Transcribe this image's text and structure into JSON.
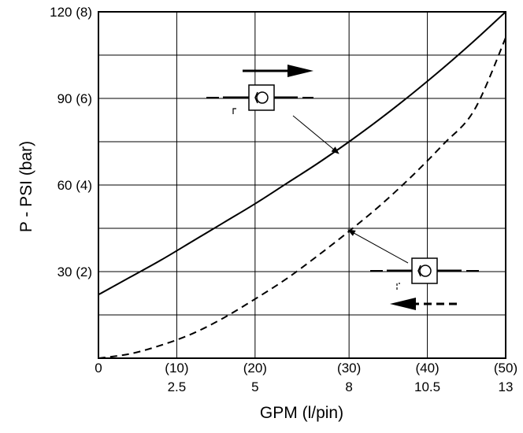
{
  "chart_data": {
    "type": "line",
    "title": "",
    "xlabel": "GPM (l/pin)",
    "ylabel": "P - PSI (bar)",
    "xlim": [
      0,
      13
    ],
    "ylim": [
      0,
      120
    ],
    "grid": true,
    "x_ticks": [
      {
        "value": 0,
        "top": "0",
        "bottom": ""
      },
      {
        "value": 2.5,
        "top": "(10)",
        "bottom": "2.5"
      },
      {
        "value": 5,
        "top": "(20)",
        "bottom": "5"
      },
      {
        "value": 8,
        "top": "(30)",
        "bottom": "8"
      },
      {
        "value": 10.5,
        "top": "(40)",
        "bottom": "10.5"
      },
      {
        "value": 13,
        "top": "(50)",
        "bottom": "13"
      }
    ],
    "y_ticks": [
      {
        "value": 30,
        "label": "30 (2)"
      },
      {
        "value": 60,
        "label": "60 (4)"
      },
      {
        "value": 90,
        "label": "90 (6)"
      },
      {
        "value": 120,
        "label": "120 (8)"
      }
    ],
    "y_grid": [
      15,
      30,
      45,
      60,
      75,
      90,
      105,
      120
    ],
    "series": [
      {
        "style": "solid",
        "color": "#000000",
        "x": [
          0,
          1,
          2,
          3,
          4,
          5,
          6,
          7,
          8,
          9,
          10,
          11,
          12,
          13
        ],
        "y": [
          22,
          28,
          34,
          40.5,
          47,
          53.5,
          60.5,
          67.5,
          75,
          83,
          91.5,
          100.5,
          110,
          120
        ]
      },
      {
        "style": "dashed",
        "color": "#000000",
        "x": [
          0,
          1,
          2,
          3,
          4,
          5,
          6,
          7,
          8,
          9,
          10,
          11,
          12,
          13
        ],
        "y": [
          0,
          1.5,
          4.5,
          8.5,
          14,
          20.5,
          27.5,
          35.5,
          44,
          53,
          63,
          74,
          86,
          111
        ]
      }
    ]
  }
}
